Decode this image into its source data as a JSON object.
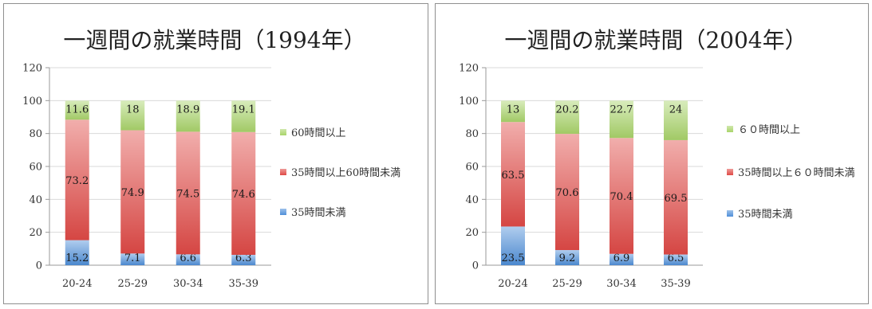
{
  "chart_data": [
    {
      "type": "bar",
      "stacked": true,
      "title": "一週間の就業時間（1994年）",
      "categories": [
        "20-24",
        "25-29",
        "30-34",
        "35-39"
      ],
      "series": [
        {
          "name": "35時間未満",
          "values": [
            15.2,
            7.1,
            6.6,
            6.3
          ],
          "color": "#4f8fd9"
        },
        {
          "name": "35時間以上60時間未満",
          "values": [
            73.2,
            74.9,
            74.5,
            74.6
          ],
          "color": "#e04a46"
        },
        {
          "name": "60時間以上",
          "values": [
            11.6,
            18,
            18.9,
            19.1
          ],
          "color": "#a9d46a"
        }
      ],
      "ylim": [
        0,
        120
      ],
      "yticks": [
        0,
        20,
        40,
        60,
        80,
        100,
        120
      ],
      "grid": true,
      "legend": "right"
    },
    {
      "type": "bar",
      "stacked": true,
      "title": "一週間の就業時間（2004年）",
      "categories": [
        "20-24",
        "25-29",
        "30-34",
        "35-39"
      ],
      "series": [
        {
          "name": "35時間未満",
          "values": [
            23.5,
            9.2,
            6.9,
            6.5
          ],
          "color": "#4f8fd9"
        },
        {
          "name": "35時間以上６０時間未満",
          "values": [
            63.5,
            70.6,
            70.4,
            69.5
          ],
          "color": "#e04a46"
        },
        {
          "name": "６０時間以上",
          "values": [
            13,
            20.2,
            22.7,
            24
          ],
          "color": "#a9d46a"
        }
      ],
      "ylim": [
        0,
        120
      ],
      "yticks": [
        0,
        20,
        40,
        60,
        80,
        100,
        120
      ],
      "grid": true,
      "legend": "right"
    }
  ]
}
